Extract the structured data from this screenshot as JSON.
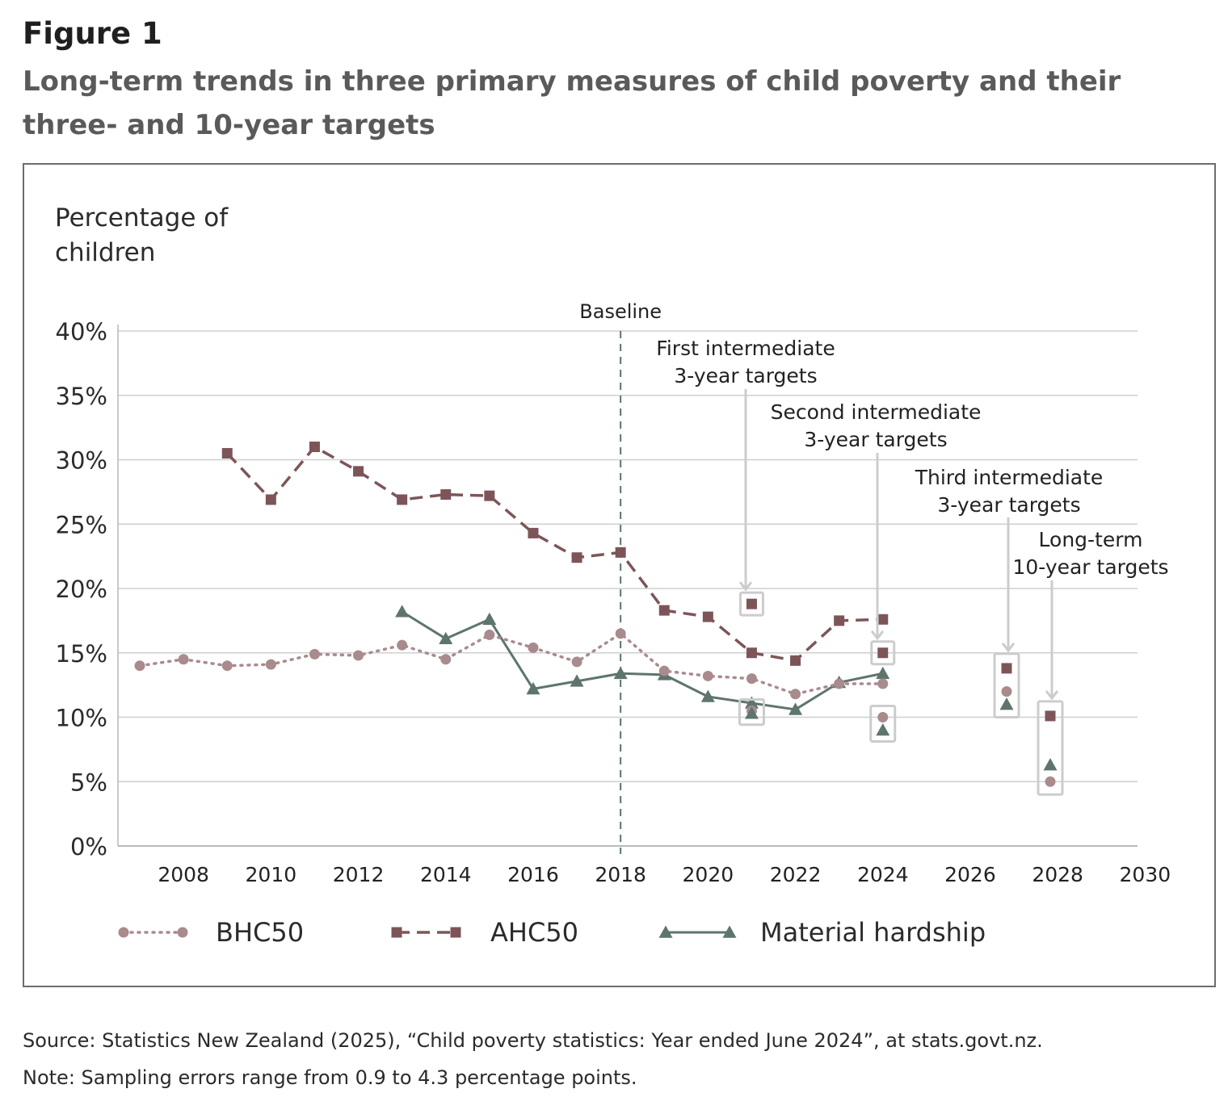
{
  "figure": {
    "label": "Figure 1",
    "title": "Long-term trends in three primary measures of child poverty and their three- and 10-year targets"
  },
  "footer": {
    "source": "Source: Statistics New Zealand (2025), “Child poverty statistics: Year ended June 2024”, at stats.govt.nz.",
    "note": "Note: Sampling errors range from 0.9 to 4.3 percentage points."
  },
  "chart_data": {
    "type": "line",
    "ylabel": "Percentage of children",
    "ylim": [
      0,
      40
    ],
    "xlim": [
      2006.5,
      2030
    ],
    "y_ticks": [
      "0%",
      "5%",
      "10%",
      "15%",
      "20%",
      "25%",
      "30%",
      "35%",
      "40%"
    ],
    "x_ticks": [
      "2008",
      "2010",
      "2012",
      "2014",
      "2016",
      "2018",
      "2020",
      "2022",
      "2024",
      "2026",
      "2028",
      "2030"
    ],
    "grid": true,
    "baseline": {
      "x": 2018,
      "label": "Baseline"
    },
    "series": [
      {
        "name": "BHC50",
        "color": "#a98b8d",
        "style": "dotted",
        "marker": "circle",
        "x": [
          2007,
          2008,
          2009,
          2010,
          2011,
          2012,
          2013,
          2014,
          2015,
          2016,
          2017,
          2018,
          2019,
          2020,
          2021,
          2022,
          2023,
          2024
        ],
        "values": [
          14.0,
          14.5,
          14.0,
          14.1,
          14.9,
          14.8,
          15.6,
          14.5,
          16.4,
          15.4,
          14.3,
          16.5,
          13.6,
          13.2,
          13.0,
          11.8,
          12.6,
          12.6
        ]
      },
      {
        "name": "AHC50",
        "color": "#7d5558",
        "style": "dashed",
        "marker": "square",
        "x": [
          2009,
          2010,
          2011,
          2012,
          2013,
          2014,
          2015,
          2016,
          2017,
          2018,
          2019,
          2020,
          2021,
          2022,
          2023,
          2024
        ],
        "values": [
          30.5,
          26.9,
          31.0,
          29.1,
          26.9,
          27.3,
          27.2,
          24.3,
          22.4,
          22.8,
          18.3,
          17.8,
          15.0,
          14.4,
          17.5,
          17.6
        ]
      },
      {
        "name": "Material hardship",
        "color": "#5e756d",
        "style": "solid",
        "marker": "triangle",
        "x": [
          2013,
          2014,
          2015,
          2016,
          2017,
          2018,
          2019,
          2020,
          2021,
          2022,
          2023,
          2024
        ],
        "values": [
          18.2,
          16.1,
          17.6,
          12.2,
          12.8,
          13.4,
          13.3,
          11.6,
          11.1,
          10.6,
          12.7,
          13.4
        ]
      }
    ],
    "targets": [
      {
        "label": "First intermediate 3-year targets",
        "x": 2021,
        "AHC50": 18.8,
        "BHC50": 10.5,
        "Material hardship": 10.3
      },
      {
        "label": "Second intermediate 3-year targets",
        "x": 2024,
        "AHC50": 15.0,
        "BHC50": 10.0,
        "Material hardship": 9.0
      },
      {
        "label": "Third intermediate 3-year targets",
        "x": 2027,
        "AHC50": 13.8,
        "BHC50": 12.0,
        "Material hardship": 11.0
      },
      {
        "label": "Long-term 10-year targets",
        "x": 2028,
        "AHC50": 10.1,
        "BHC50": 5.0,
        "Material hardship": 6.3
      }
    ],
    "target_labels": [
      [
        "First intermediate",
        "3-year targets"
      ],
      [
        "Second intermediate",
        "3-year targets"
      ],
      [
        "Third intermediate",
        "3-year targets"
      ],
      [
        "Long-term",
        "10-year targets"
      ]
    ],
    "ylabel_lines": [
      "Percentage of",
      "children"
    ]
  }
}
